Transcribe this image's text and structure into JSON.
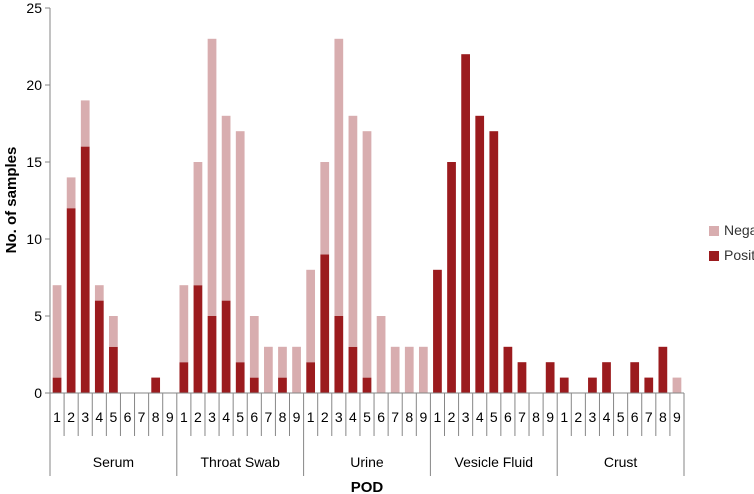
{
  "chart_data": {
    "type": "bar",
    "stacked": true,
    "xlabel": "POD",
    "ylabel": "No. of samples",
    "ylim": [
      0,
      25
    ],
    "yticks": [
      0,
      5,
      10,
      15,
      20,
      25
    ],
    "grid": false,
    "legend_position": "right",
    "groups": [
      {
        "name": "Serum",
        "categories": [
          "1",
          "2",
          "3",
          "4",
          "5",
          "6",
          "7",
          "8",
          "9"
        ],
        "positive": [
          1,
          12,
          16,
          6,
          3,
          0,
          0,
          1,
          0
        ],
        "negative": [
          6,
          2,
          3,
          1,
          2,
          0,
          0,
          0,
          0
        ]
      },
      {
        "name": "Throat Swab",
        "categories": [
          "1",
          "2",
          "3",
          "4",
          "5",
          "6",
          "7",
          "8",
          "9"
        ],
        "positive": [
          2,
          7,
          5,
          6,
          2,
          1,
          0,
          1,
          0
        ],
        "negative": [
          5,
          8,
          18,
          12,
          15,
          4,
          3,
          2,
          3
        ]
      },
      {
        "name": "Urine",
        "categories": [
          "1",
          "2",
          "3",
          "4",
          "5",
          "6",
          "7",
          "8",
          "9"
        ],
        "positive": [
          2,
          9,
          5,
          3,
          1,
          0,
          0,
          0,
          0
        ],
        "negative": [
          6,
          6,
          18,
          15,
          16,
          5,
          3,
          3,
          3
        ]
      },
      {
        "name": "Vesicle Fluid",
        "categories": [
          "1",
          "2",
          "3",
          "4",
          "5",
          "6",
          "7",
          "8",
          "9"
        ],
        "positive": [
          8,
          15,
          22,
          18,
          17,
          3,
          2,
          0,
          2
        ],
        "negative": [
          0,
          0,
          0,
          0,
          0,
          0,
          0,
          0,
          0
        ]
      },
      {
        "name": "Crust",
        "categories": [
          "1",
          "2",
          "3",
          "4",
          "5",
          "6",
          "7",
          "8",
          "9"
        ],
        "positive": [
          1,
          0,
          1,
          2,
          0,
          2,
          1,
          3,
          0
        ],
        "negative": [
          0,
          0,
          0,
          0,
          0,
          0,
          0,
          0,
          1
        ]
      }
    ],
    "series": [
      {
        "name": "Negative",
        "color": "#d8adaf"
      },
      {
        "name": "Positive",
        "color": "#9b1b1e"
      }
    ]
  }
}
